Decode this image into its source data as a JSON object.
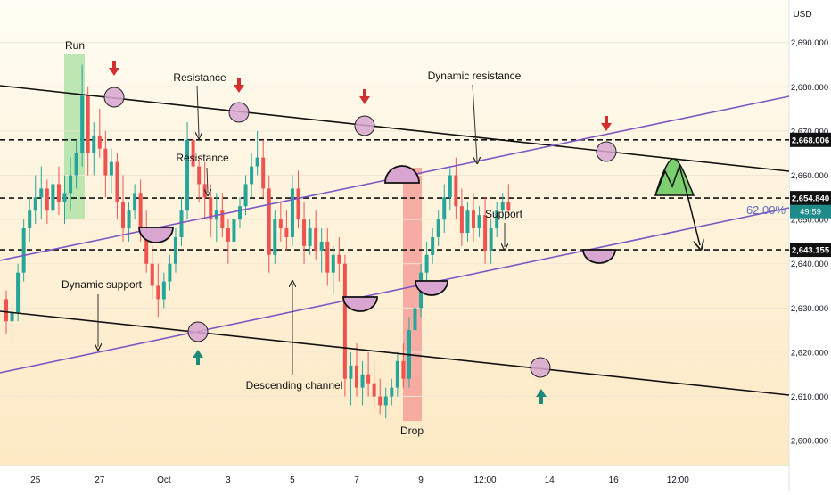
{
  "chart_data": {
    "type": "candlestick",
    "currency": "USD",
    "y_axis": {
      "ylim": [
        2596,
        2698
      ],
      "ticks": [
        2600,
        2610,
        2620,
        2630,
        2640,
        2650,
        2660,
        2670,
        2680,
        2690
      ],
      "tick_labels": [
        "2,600.000",
        "2,610.000",
        "2,620.000",
        "2,630.000",
        "2,640.000",
        "2,650.000",
        "2,660.000",
        "2,670.000",
        "2,680.000",
        "2,690.000"
      ],
      "position": "right"
    },
    "x_axis": {
      "tick_labels": [
        "25",
        "27",
        "Oct",
        "3",
        "5",
        "7",
        "9",
        "12:00",
        "14",
        "16",
        "12:00"
      ],
      "tick_index": [
        5,
        16,
        27,
        38,
        49,
        60,
        71,
        82,
        93,
        104,
        115
      ]
    },
    "price_levels": [
      {
        "value": 2668.006,
        "label": "2,668.006",
        "style": "dashed"
      },
      {
        "value": 2654.84,
        "label": "2,654.840",
        "style": "dashed"
      },
      {
        "value": 2643.155,
        "label": "2,643.155",
        "style": "dashed"
      }
    ],
    "current_price": {
      "value": 2651.8,
      "label": "49:59",
      "color": "#1e8a8a"
    },
    "fib_label": "62.00%",
    "candles": [
      [
        2632,
        2634,
        2624,
        2627
      ],
      [
        2627,
        2631,
        2622,
        2629
      ],
      [
        2629,
        2640,
        2627,
        2638
      ],
      [
        2638,
        2650,
        2636,
        2648
      ],
      [
        2648,
        2655,
        2645,
        2652
      ],
      [
        2652,
        2660,
        2649,
        2655
      ],
      [
        2655,
        2662,
        2650,
        2657
      ],
      [
        2657,
        2659,
        2649,
        2652
      ],
      [
        2652,
        2660,
        2650,
        2658
      ],
      [
        2658,
        2662,
        2651,
        2654
      ],
      [
        2654,
        2660,
        2649,
        2656
      ],
      [
        2656,
        2664,
        2652,
        2660
      ],
      [
        2660,
        2668,
        2657,
        2665
      ],
      [
        2665,
        2685,
        2662,
        2678
      ],
      [
        2678,
        2680,
        2660,
        2665
      ],
      [
        2665,
        2672,
        2660,
        2669
      ],
      [
        2669,
        2675,
        2664,
        2666
      ],
      [
        2666,
        2670,
        2655,
        2660
      ],
      [
        2660,
        2666,
        2656,
        2663
      ],
      [
        2663,
        2665,
        2650,
        2654
      ],
      [
        2654,
        2660,
        2645,
        2648
      ],
      [
        2648,
        2654,
        2645,
        2652
      ],
      [
        2652,
        2658,
        2650,
        2656
      ],
      [
        2656,
        2659,
        2645,
        2648
      ],
      [
        2648,
        2652,
        2638,
        2640
      ],
      [
        2640,
        2644,
        2632,
        2635
      ],
      [
        2635,
        2640,
        2628,
        2632
      ],
      [
        2632,
        2638,
        2630,
        2636
      ],
      [
        2636,
        2642,
        2634,
        2640
      ],
      [
        2640,
        2648,
        2638,
        2646
      ],
      [
        2646,
        2655,
        2644,
        2652
      ],
      [
        2652,
        2672,
        2650,
        2668
      ],
      [
        2668,
        2670,
        2658,
        2662
      ],
      [
        2662,
        2664,
        2654,
        2658
      ],
      [
        2658,
        2663,
        2650,
        2655
      ],
      [
        2655,
        2658,
        2646,
        2650
      ],
      [
        2650,
        2656,
        2645,
        2652
      ],
      [
        2652,
        2656,
        2646,
        2648
      ],
      [
        2648,
        2650,
        2640,
        2645
      ],
      [
        2645,
        2652,
        2643,
        2650
      ],
      [
        2650,
        2655,
        2648,
        2653
      ],
      [
        2653,
        2660,
        2651,
        2658
      ],
      [
        2658,
        2665,
        2655,
        2662
      ],
      [
        2662,
        2670,
        2660,
        2664
      ],
      [
        2664,
        2668,
        2655,
        2657
      ],
      [
        2657,
        2660,
        2638,
        2642
      ],
      [
        2642,
        2652,
        2640,
        2650
      ],
      [
        2650,
        2654,
        2645,
        2648
      ],
      [
        2648,
        2652,
        2643,
        2646
      ],
      [
        2646,
        2660,
        2644,
        2657
      ],
      [
        2657,
        2661,
        2648,
        2650
      ],
      [
        2650,
        2654,
        2640,
        2644
      ],
      [
        2644,
        2650,
        2642,
        2648
      ],
      [
        2648,
        2652,
        2641,
        2643
      ],
      [
        2643,
        2648,
        2638,
        2645
      ],
      [
        2645,
        2648,
        2635,
        2638
      ],
      [
        2638,
        2644,
        2633,
        2642
      ],
      [
        2642,
        2646,
        2636,
        2640
      ],
      [
        2640,
        2642,
        2610,
        2614
      ],
      [
        2614,
        2620,
        2608,
        2617
      ],
      [
        2617,
        2622,
        2610,
        2612
      ],
      [
        2612,
        2618,
        2608,
        2615
      ],
      [
        2615,
        2620,
        2610,
        2613
      ],
      [
        2613,
        2618,
        2607,
        2610
      ],
      [
        2610,
        2614,
        2606,
        2608
      ],
      [
        2608,
        2612,
        2605,
        2610
      ],
      [
        2610,
        2614,
        2608,
        2612
      ],
      [
        2612,
        2620,
        2610,
        2618
      ],
      [
        2618,
        2622,
        2612,
        2614
      ],
      [
        2614,
        2628,
        2612,
        2625
      ],
      [
        2625,
        2632,
        2622,
        2630
      ],
      [
        2630,
        2640,
        2628,
        2638
      ],
      [
        2638,
        2645,
        2635,
        2642
      ],
      [
        2642,
        2648,
        2640,
        2646
      ],
      [
        2646,
        2652,
        2644,
        2650
      ],
      [
        2650,
        2658,
        2647,
        2655
      ],
      [
        2655,
        2662,
        2652,
        2660
      ],
      [
        2660,
        2664,
        2650,
        2653
      ],
      [
        2653,
        2657,
        2644,
        2647
      ],
      [
        2647,
        2654,
        2645,
        2652
      ],
      [
        2652,
        2656,
        2645,
        2648
      ],
      [
        2648,
        2653,
        2646,
        2651
      ],
      [
        2651,
        2655,
        2640,
        2643
      ],
      [
        2643,
        2650,
        2640,
        2648
      ],
      [
        2648,
        2654,
        2646,
        2652
      ],
      [
        2652,
        2656,
        2650,
        2654
      ],
      [
        2654,
        2658,
        2651,
        2652
      ]
    ]
  },
  "annotations": {
    "run": "Run",
    "resistance_1": "Resistance",
    "resistance_2": "Resistance",
    "dynamic_resistance": "Dynamic resistance",
    "support": "Support",
    "dynamic_support": "Dynamic support",
    "descending_channel": "Descending channel",
    "drop": "Drop"
  },
  "colors": {
    "up": "#26a69a",
    "down": "#ef5350",
    "channel": "#111111",
    "dynamic_line": "#7e57c2",
    "touch_circle": "#d8a6d0",
    "arrow_down": "#d32f2f",
    "arrow_up": "#1e8a7a",
    "run_zone": "#a5e0a0",
    "drop_zone": "#f4a09a"
  }
}
